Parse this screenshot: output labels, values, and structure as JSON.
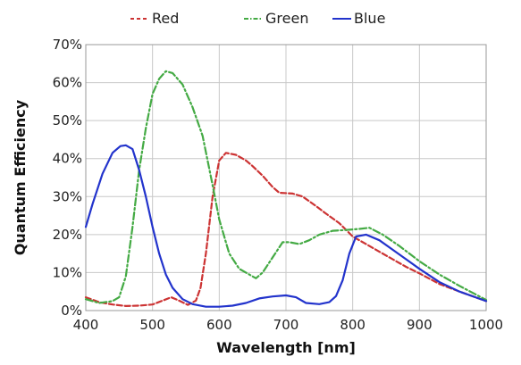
{
  "chart_data": {
    "type": "line",
    "title": "",
    "xlabel": "Wavelength [nm]",
    "ylabel": "Quantum Efficiency",
    "xlim": [
      400,
      1000
    ],
    "ylim": [
      0,
      70
    ],
    "x_ticks": [
      400,
      500,
      600,
      700,
      800,
      900,
      1000
    ],
    "x_tick_labels": [
      "400",
      "500",
      "600",
      "700",
      "800",
      "900",
      "1000"
    ],
    "y_ticks": [
      0,
      10,
      20,
      30,
      40,
      50,
      60,
      70
    ],
    "y_tick_labels": [
      "0%",
      "10%",
      "20%",
      "30%",
      "40%",
      "50%",
      "60%",
      "70%"
    ],
    "grid": true,
    "legend_position": "top-center",
    "series": [
      {
        "name": "Red",
        "color": "#cc3333",
        "dash": "dashed",
        "points": [
          [
            400,
            3.5
          ],
          [
            420,
            2.2
          ],
          [
            440,
            1.6
          ],
          [
            460,
            1.2
          ],
          [
            480,
            1.3
          ],
          [
            500,
            1.6
          ],
          [
            515,
            2.6
          ],
          [
            528,
            3.5
          ],
          [
            540,
            2.6
          ],
          [
            553,
            1.5
          ],
          [
            565,
            2.6
          ],
          [
            572,
            6
          ],
          [
            580,
            15
          ],
          [
            590,
            30
          ],
          [
            600,
            39.5
          ],
          [
            610,
            41.5
          ],
          [
            625,
            41
          ],
          [
            640,
            39.5
          ],
          [
            650,
            38
          ],
          [
            665,
            35.5
          ],
          [
            680,
            32.5
          ],
          [
            690,
            31
          ],
          [
            710,
            30.8
          ],
          [
            725,
            30
          ],
          [
            745,
            27.5
          ],
          [
            760,
            25.5
          ],
          [
            780,
            23
          ],
          [
            800,
            19.5
          ],
          [
            820,
            17.5
          ],
          [
            850,
            14.5
          ],
          [
            880,
            11.5
          ],
          [
            900,
            9.8
          ],
          [
            930,
            7
          ],
          [
            960,
            5
          ],
          [
            1000,
            2.5
          ]
        ]
      },
      {
        "name": "Green",
        "color": "#44aa44",
        "dash": "dashdot",
        "points": [
          [
            400,
            3
          ],
          [
            420,
            2
          ],
          [
            440,
            2.5
          ],
          [
            450,
            3.5
          ],
          [
            460,
            9
          ],
          [
            470,
            22
          ],
          [
            480,
            37
          ],
          [
            490,
            48
          ],
          [
            500,
            57
          ],
          [
            510,
            61
          ],
          [
            520,
            63
          ],
          [
            530,
            62.5
          ],
          [
            545,
            59.5
          ],
          [
            560,
            53.5
          ],
          [
            575,
            46
          ],
          [
            590,
            33
          ],
          [
            600,
            24
          ],
          [
            615,
            15
          ],
          [
            630,
            11
          ],
          [
            645,
            9.5
          ],
          [
            655,
            8.5
          ],
          [
            665,
            10
          ],
          [
            680,
            14
          ],
          [
            695,
            18
          ],
          [
            705,
            18
          ],
          [
            720,
            17.5
          ],
          [
            735,
            18.5
          ],
          [
            750,
            20
          ],
          [
            770,
            21
          ],
          [
            790,
            21.2
          ],
          [
            810,
            21.5
          ],
          [
            825,
            21.8
          ],
          [
            845,
            20
          ],
          [
            870,
            17
          ],
          [
            900,
            13
          ],
          [
            930,
            9.5
          ],
          [
            960,
            6.5
          ],
          [
            1000,
            2.8
          ]
        ]
      },
      {
        "name": "Blue",
        "color": "#2233cc",
        "dash": "solid",
        "points": [
          [
            400,
            22
          ],
          [
            410,
            28
          ],
          [
            425,
            36
          ],
          [
            440,
            41.5
          ],
          [
            452,
            43.3
          ],
          [
            460,
            43.5
          ],
          [
            470,
            42.5
          ],
          [
            480,
            37
          ],
          [
            490,
            30
          ],
          [
            500,
            22
          ],
          [
            510,
            15
          ],
          [
            520,
            9.5
          ],
          [
            530,
            6
          ],
          [
            545,
            3
          ],
          [
            560,
            1.7
          ],
          [
            580,
            1
          ],
          [
            600,
            1
          ],
          [
            620,
            1.3
          ],
          [
            640,
            2
          ],
          [
            660,
            3.2
          ],
          [
            680,
            3.7
          ],
          [
            700,
            4
          ],
          [
            715,
            3.5
          ],
          [
            730,
            2
          ],
          [
            750,
            1.7
          ],
          [
            765,
            2.2
          ],
          [
            775,
            3.8
          ],
          [
            785,
            8
          ],
          [
            795,
            15
          ],
          [
            805,
            19.5
          ],
          [
            820,
            20
          ],
          [
            840,
            18.5
          ],
          [
            860,
            16
          ],
          [
            880,
            13.5
          ],
          [
            900,
            11
          ],
          [
            930,
            7.5
          ],
          [
            960,
            5
          ],
          [
            1000,
            2.5
          ]
        ]
      }
    ]
  }
}
